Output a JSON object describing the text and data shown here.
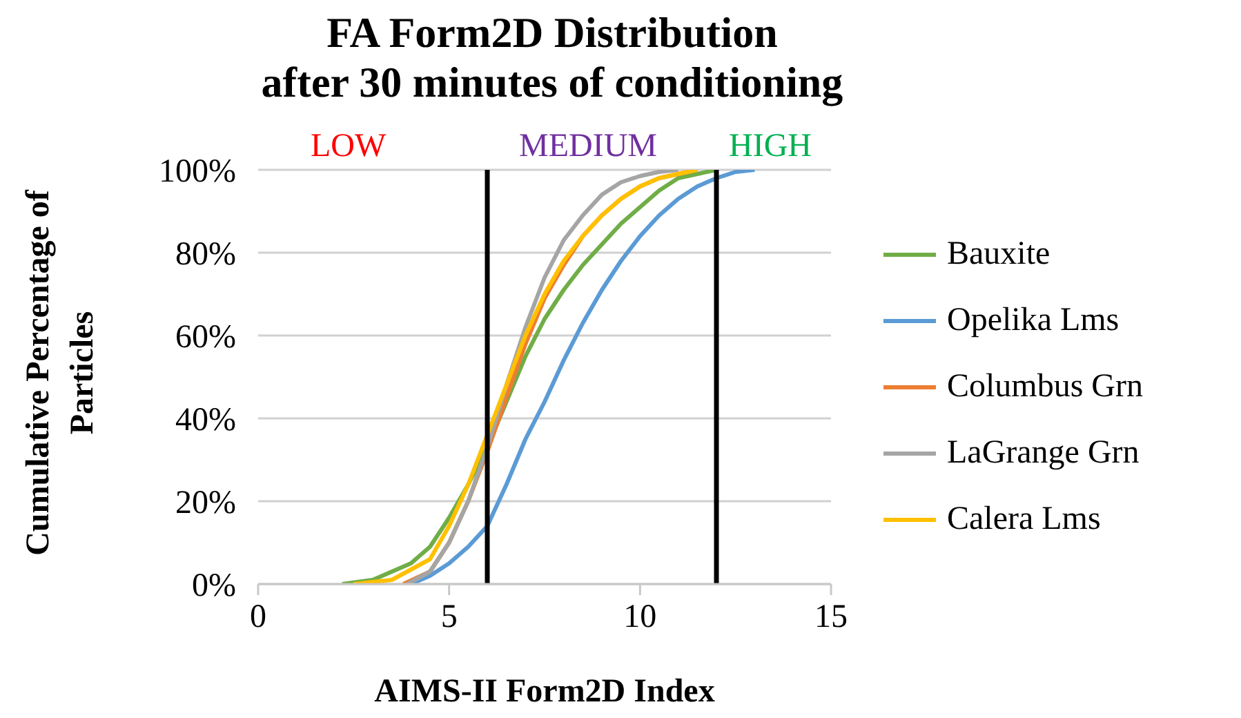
{
  "chart_data": {
    "type": "line",
    "title": "FA Form2D Distribution\nafter 30 minutes of conditioning",
    "xlabel": "AIMS-II Form2D Index",
    "ylabel": "Cumulative Percentage of Particles",
    "xlim": [
      0,
      15
    ],
    "xticks": [
      0,
      5,
      10,
      15
    ],
    "ylim": [
      0,
      100
    ],
    "yticks": [
      {
        "value": 0,
        "label": "0%"
      },
      {
        "value": 20,
        "label": "20%"
      },
      {
        "value": 40,
        "label": "40%"
      },
      {
        "value": 60,
        "label": "60%"
      },
      {
        "value": 80,
        "label": "80%"
      },
      {
        "value": 100,
        "label": "100%"
      }
    ],
    "grid": "y",
    "legend": "right",
    "marker": "none",
    "line_style": "solid",
    "ref_lines": [
      {
        "axis": "x",
        "value": 6,
        "color": "#000000"
      },
      {
        "axis": "x",
        "value": 12,
        "color": "#000000"
      }
    ],
    "annotations": [
      "LOW",
      "MEDIUM",
      "HIGH"
    ],
    "series": [
      {
        "name": "Bauxite",
        "color": "#70ad47",
        "x": [
          2.2,
          3,
          4,
          4.5,
          5,
          5.5,
          6,
          6.5,
          7,
          7.5,
          8,
          8.5,
          9,
          9.5,
          10,
          10.5,
          11,
          11.5,
          12
        ],
        "values": [
          0,
          1,
          5,
          9,
          16,
          24,
          33,
          44,
          55,
          64,
          71,
          77,
          82,
          87,
          91,
          95,
          98,
          99,
          100
        ]
      },
      {
        "name": "Opelika Lms",
        "color": "#5b9bd5",
        "x": [
          4,
          4.5,
          5,
          5.5,
          6,
          6.5,
          7,
          7.5,
          8,
          8.5,
          9,
          9.5,
          10,
          10.5,
          11,
          11.5,
          12,
          12.5,
          13
        ],
        "values": [
          0,
          2,
          5,
          9,
          14,
          24,
          35,
          44,
          54,
          63,
          71,
          78,
          84,
          89,
          93,
          96,
          98,
          99.5,
          100
        ]
      },
      {
        "name": "Columbus Grn",
        "color": "#ed7d31",
        "x": [
          3.8,
          4.5,
          5,
          5.5,
          6,
          6.5,
          7,
          7.5,
          8,
          8.5,
          9,
          9.5,
          10,
          10.5,
          11,
          11.5
        ],
        "values": [
          0,
          3,
          10,
          20,
          32,
          45,
          58,
          69,
          77,
          84,
          89,
          93,
          96,
          98,
          99,
          100
        ]
      },
      {
        "name": "LaGrange Grn",
        "color": "#a5a5a5",
        "x": [
          3.9,
          4.5,
          5,
          5.5,
          6,
          6.5,
          7,
          7.5,
          8,
          8.5,
          9,
          9.5,
          10,
          10.5,
          11
        ],
        "values": [
          0,
          3,
          10,
          20,
          33,
          48,
          62,
          74,
          83,
          89,
          94,
          97,
          98.5,
          99.5,
          100
        ]
      },
      {
        "name": "Calera Lms",
        "color": "#ffc000",
        "x": [
          2.5,
          3.5,
          4.5,
          5,
          5.5,
          6,
          6.5,
          7,
          7.5,
          8,
          8.5,
          9,
          9.5,
          10,
          10.5,
          11,
          11.5
        ],
        "values": [
          0,
          1,
          6,
          14,
          24,
          36,
          48,
          60,
          70,
          78,
          84,
          89,
          93,
          96,
          98,
          99,
          100
        ]
      }
    ]
  }
}
